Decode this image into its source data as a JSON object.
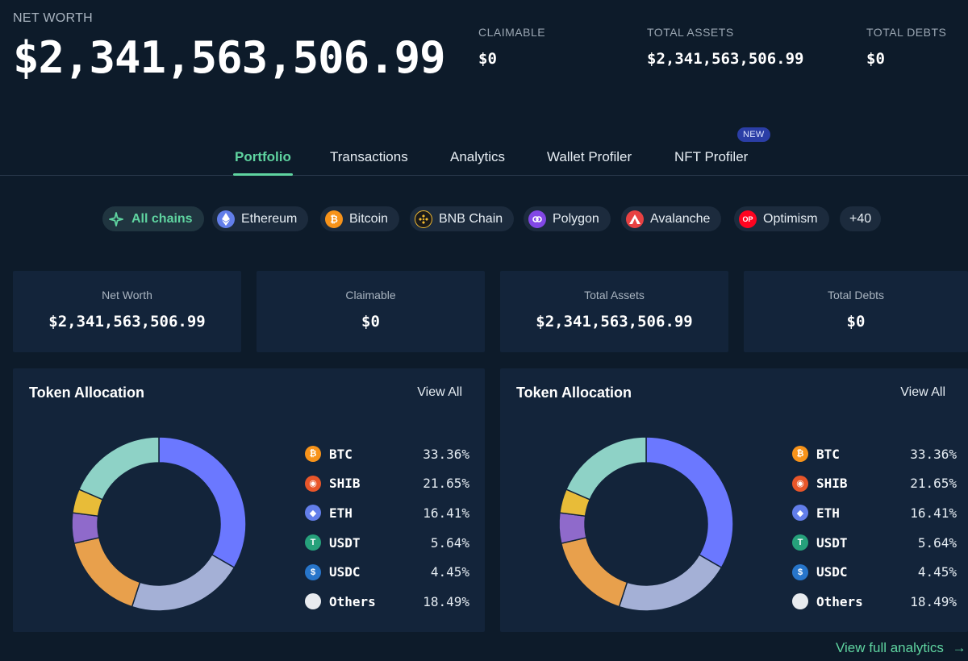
{
  "header": {
    "net_worth_label": "NET WORTH",
    "net_worth_value": "$2,341,563,506.99",
    "stats": [
      {
        "label": "CLAIMABLE",
        "value": "$0"
      },
      {
        "label": "TOTAL ASSETS",
        "value": "$2,341,563,506.99"
      },
      {
        "label": "TOTAL DEBTS",
        "value": "$0"
      }
    ]
  },
  "tabs": [
    {
      "label": "Portfolio",
      "active": true
    },
    {
      "label": "Transactions"
    },
    {
      "label": "Analytics"
    },
    {
      "label": "Wallet Profiler"
    },
    {
      "label": "NFT Profiler",
      "badge": "NEW"
    }
  ],
  "chains": [
    {
      "label": "All chains",
      "icon": "sparkle-icon",
      "active": true
    },
    {
      "label": "Ethereum",
      "icon": "ethereum-icon",
      "color": "#627eea"
    },
    {
      "label": "Bitcoin",
      "icon": "bitcoin-icon",
      "color": "#f7931a"
    },
    {
      "label": "BNB Chain",
      "icon": "bnb-icon",
      "color": "#f3ba2f"
    },
    {
      "label": "Polygon",
      "icon": "polygon-icon",
      "color": "#8247e5"
    },
    {
      "label": "Avalanche",
      "icon": "avalanche-icon",
      "color": "#e84142"
    },
    {
      "label": "Optimism",
      "icon": "optimism-icon",
      "color": "#ff0420",
      "glyph": "OP"
    },
    {
      "label": "+40"
    }
  ],
  "summary": [
    {
      "label": "Net Worth",
      "value": "$2,341,563,506.99"
    },
    {
      "label": "Claimable",
      "value": "$0"
    },
    {
      "label": "Total Assets",
      "value": "$2,341,563,506.99"
    },
    {
      "label": "Total Debts",
      "value": "$0"
    }
  ],
  "allocation": {
    "title": "Token Allocation",
    "view_all": "View All",
    "tokens": [
      {
        "symbol": "BTC",
        "pct": "33.36%",
        "value": 33.36,
        "color": "#6b78ff",
        "icon_color": "#f7931a",
        "icon": "bitcoin-icon"
      },
      {
        "symbol": "SHIB",
        "pct": "21.65%",
        "value": 21.65,
        "color": "#a4b0d6",
        "icon_color": "#e8562a",
        "icon": "shib-icon"
      },
      {
        "symbol": "ETH",
        "pct": "16.41%",
        "value": 16.41,
        "color": "#e8a04c",
        "icon_color": "#627eea",
        "icon": "ethereum-icon"
      },
      {
        "symbol": "USDT",
        "pct": "5.64%",
        "value": 5.64,
        "color": "#8f6acb",
        "icon_color": "#26a17b",
        "icon": "tether-icon"
      },
      {
        "symbol": "USDC",
        "pct": "4.45%",
        "value": 4.45,
        "color": "#e8bc38",
        "icon_color": "#2775ca",
        "icon": "usdc-icon"
      },
      {
        "symbol": "Others",
        "pct": "18.49%",
        "value": 18.49,
        "color": "#8ed2c6",
        "icon_color": "#e8ebef",
        "icon": "circle-icon"
      }
    ]
  },
  "footer": {
    "view_full": "View full analytics"
  }
}
